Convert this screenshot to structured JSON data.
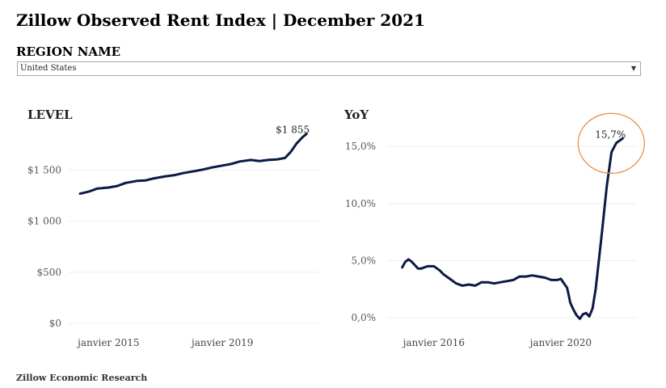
{
  "header": {
    "title": "Zillow Observed Rent Index | December 2021"
  },
  "region": {
    "label": "REGION NAME",
    "selected": "United States",
    "caret_icon": "chevron-down-icon"
  },
  "footer": {
    "text": "Zillow Economic Research"
  },
  "colors": {
    "line": "#0b1a45",
    "annotation_circle": "#e8914a",
    "gridline": "#eeeeee"
  },
  "chart_data": [
    {
      "type": "line",
      "title": "LEVEL",
      "y_ticks": [
        0,
        500,
        1000,
        1500
      ],
      "y_tick_labels": [
        "$0",
        "$500",
        "$1 000",
        "$1 500"
      ],
      "x_ticks": [
        2015,
        2019
      ],
      "x_tick_labels": [
        "janvier 2015",
        "janvier 2019"
      ],
      "ylim": [
        0,
        1900
      ],
      "xlim": [
        2013.6,
        2022.4
      ],
      "grid": true,
      "annotation": {
        "label": "$1 855"
      },
      "series": [
        {
          "x": [
            2014.0,
            2014.3,
            2014.6,
            2015.0,
            2015.3,
            2015.6,
            2016.0,
            2016.3,
            2016.6,
            2017.0,
            2017.3,
            2017.6,
            2018.0,
            2018.3,
            2018.6,
            2019.0,
            2019.3,
            2019.6,
            2020.0,
            2020.3,
            2020.6,
            2020.9,
            2021.2,
            2021.4,
            2021.6,
            2021.8,
            2021.95
          ],
          "y": [
            1270,
            1290,
            1320,
            1330,
            1345,
            1375,
            1395,
            1400,
            1420,
            1440,
            1450,
            1470,
            1490,
            1505,
            1525,
            1545,
            1560,
            1585,
            1600,
            1590,
            1600,
            1605,
            1620,
            1680,
            1760,
            1820,
            1855
          ]
        }
      ]
    },
    {
      "type": "line",
      "title": "YoY",
      "y_ticks": [
        0,
        5,
        10,
        15
      ],
      "y_tick_labels": [
        "0,0%",
        "5,0%",
        "10,0%",
        "15,0%"
      ],
      "x_ticks": [
        2016,
        2020
      ],
      "x_tick_labels": [
        "janvier 2016",
        "janvier 2020"
      ],
      "ylim": [
        -0.5,
        16.5
      ],
      "xlim": [
        2014.5,
        2022.4
      ],
      "grid": true,
      "annotation": {
        "label": "15,7%"
      },
      "series": [
        {
          "x": [
            2015.0,
            2015.1,
            2015.2,
            2015.3,
            2015.4,
            2015.5,
            2015.6,
            2015.8,
            2016.0,
            2016.2,
            2016.3,
            2016.5,
            2016.7,
            2016.9,
            2017.1,
            2017.3,
            2017.5,
            2017.7,
            2017.9,
            2018.1,
            2018.3,
            2018.5,
            2018.7,
            2018.9,
            2019.1,
            2019.3,
            2019.5,
            2019.7,
            2019.9,
            2020.0,
            2020.2,
            2020.3,
            2020.4,
            2020.5,
            2020.6,
            2020.7,
            2020.8,
            2020.9,
            2021.0,
            2021.1,
            2021.2,
            2021.3,
            2021.45,
            2021.6,
            2021.75,
            2021.9,
            2021.95
          ],
          "y": [
            4.4,
            4.9,
            5.1,
            4.9,
            4.6,
            4.3,
            4.3,
            4.5,
            4.5,
            4.1,
            3.8,
            3.4,
            3.0,
            2.8,
            2.9,
            2.8,
            3.1,
            3.1,
            3.0,
            3.1,
            3.2,
            3.3,
            3.6,
            3.6,
            3.7,
            3.6,
            3.5,
            3.3,
            3.3,
            3.4,
            2.6,
            1.3,
            0.7,
            0.2,
            -0.1,
            0.3,
            0.4,
            0.1,
            0.8,
            2.5,
            5.0,
            7.5,
            11.5,
            14.5,
            15.3,
            15.6,
            15.7
          ]
        }
      ]
    }
  ]
}
